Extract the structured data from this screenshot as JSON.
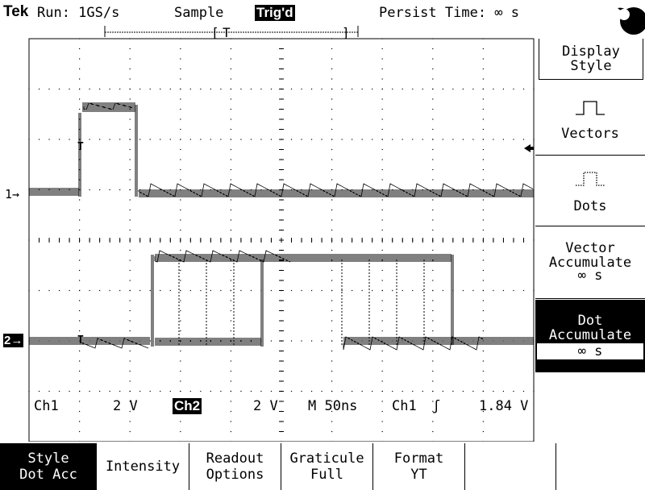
{
  "status_bar": {
    "brand": "Tek",
    "run": "Run: 1GS/s",
    "acquire_mode": "Sample",
    "trigger_status": "Trig'd",
    "persist": "Persist Time: ∞ s"
  },
  "side_menu": {
    "title_line1": "Display",
    "title_line2": "Style",
    "items": [
      {
        "label": "Vectors",
        "icon": "vectors-icon"
      },
      {
        "label": "Dots",
        "icon": "dots-icon"
      },
      {
        "label_line1": "Vector",
        "label_line2": "Accumulate",
        "label_line3": "∞ s"
      },
      {
        "label_line1": "Dot",
        "label_line2": "Accumulate",
        "label_line3": "∞ s",
        "selected": true
      }
    ]
  },
  "bottom_menu": [
    {
      "line1": "Style",
      "line2": "Dot Acc",
      "selected": true
    },
    {
      "line1": "Intensity",
      "line2": ""
    },
    {
      "line1": "Readout",
      "line2": "Options"
    },
    {
      "line1": "Graticule",
      "line2": "Full"
    },
    {
      "line1": "Format",
      "line2": "YT"
    }
  ],
  "readout": {
    "ch1": "Ch1",
    "ch1_scale": "2 V",
    "ch2": "Ch2",
    "ch2_scale": "2 V",
    "timebase": "M 50ns",
    "trigger_source": "Ch1",
    "trigger_level": "1.84 V"
  },
  "markers": {
    "ch1": "1→",
    "ch2": "2→",
    "trigger_bar": "T"
  },
  "colors": {
    "foreground": "#000000",
    "background": "#ffffff"
  }
}
